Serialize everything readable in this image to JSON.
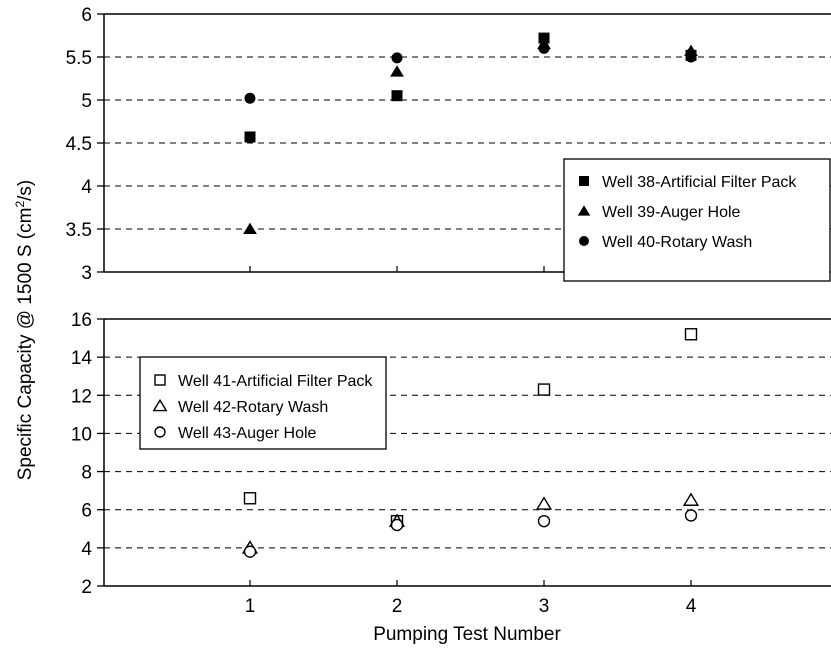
{
  "chart_data": [
    {
      "type": "scatter",
      "title": "",
      "xlabel": "Pumping Test Number",
      "ylabel": "Specific Capacity @ 1500 S (cm2/s)",
      "x": [
        1,
        2,
        3,
        4
      ],
      "ylim": [
        3,
        6
      ],
      "yticks": [
        "3",
        "3.5",
        "4",
        "4.5",
        "5",
        "5.5",
        "6"
      ],
      "grid": "horizontal dashed",
      "legend_position": "right",
      "series": [
        {
          "name": "Well 38-Artificial Filter Pack",
          "marker": "filled-square",
          "values": [
            4.57,
            5.05,
            5.72,
            5.52
          ]
        },
        {
          "name": "Well 39-Auger Hole",
          "marker": "filled-triangle",
          "values": [
            3.5,
            5.33,
            5.65,
            5.57
          ]
        },
        {
          "name": "Well 40-Rotary Wash",
          "marker": "filled-circle",
          "values": [
            5.02,
            5.49,
            5.6,
            5.5
          ]
        }
      ]
    },
    {
      "type": "scatter",
      "title": "",
      "xlabel": "Pumping Test Number",
      "ylabel": "Specific Capacity @ 1500 S (cm2/s)",
      "x": [
        1,
        2,
        3,
        4
      ],
      "xticks": [
        "1",
        "2",
        "3",
        "4"
      ],
      "ylim": [
        2,
        16
      ],
      "yticks": [
        "2",
        "4",
        "6",
        "8",
        "10",
        "12",
        "14",
        "16"
      ],
      "grid": "horizontal dashed",
      "legend_position": "left",
      "series": [
        {
          "name": "Well 41-Artificial Filter Pack",
          "marker": "open-square",
          "values": [
            6.6,
            5.4,
            12.3,
            15.2
          ]
        },
        {
          "name": "Well 42-Rotary Wash",
          "marker": "open-triangle",
          "values": [
            4.0,
            5.4,
            6.3,
            6.5
          ]
        },
        {
          "name": "Well 43-Auger Hole",
          "marker": "open-circle",
          "values": [
            3.8,
            5.2,
            5.4,
            5.7
          ]
        }
      ]
    }
  ],
  "axis_text": {
    "xlabel": "Pumping Test Number",
    "ylabel_prefix": "Specific Capacity @ 1500 S (cm",
    "ylabel_sup": "2",
    "ylabel_suffix": "/s)"
  }
}
